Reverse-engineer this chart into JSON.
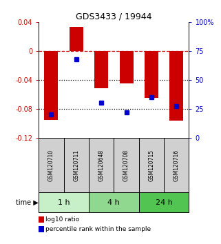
{
  "title": "GDS3433 / 19944",
  "samples": [
    "GSM120710",
    "GSM120711",
    "GSM120648",
    "GSM120708",
    "GSM120715",
    "GSM120716"
  ],
  "log10_ratio": [
    -0.095,
    0.033,
    -0.052,
    -0.045,
    -0.065,
    -0.096
  ],
  "percentile_rank": [
    20,
    68,
    30,
    22,
    35,
    27
  ],
  "ylim_left": [
    -0.12,
    0.04
  ],
  "ylim_right": [
    0,
    100
  ],
  "yticks_left": [
    0.04,
    0.0,
    -0.04,
    -0.08,
    -0.12
  ],
  "yticks_right": [
    100,
    75,
    50,
    25,
    0
  ],
  "ytick_labels_left": [
    "0.04",
    "0",
    "-0.04",
    "-0.08",
    "-0.12"
  ],
  "ytick_labels_right": [
    "100%",
    "75",
    "50",
    "25",
    "0"
  ],
  "bar_color": "#cc0000",
  "dot_color": "#0000cc",
  "time_groups": [
    {
      "label": "1 h",
      "start": 0,
      "end": 2,
      "color": "#c8f0c8"
    },
    {
      "label": "4 h",
      "start": 2,
      "end": 4,
      "color": "#90d890"
    },
    {
      "label": "24 h",
      "start": 4,
      "end": 6,
      "color": "#52c452"
    }
  ],
  "sample_box_color": "#d0d0d0",
  "legend_items": [
    {
      "label": "log10 ratio",
      "color": "#cc0000"
    },
    {
      "label": "percentile rank within the sample",
      "color": "#0000cc"
    }
  ],
  "dashed_line_color": "#cc0000",
  "dotted_line_color": "#000000",
  "bar_width": 0.55
}
